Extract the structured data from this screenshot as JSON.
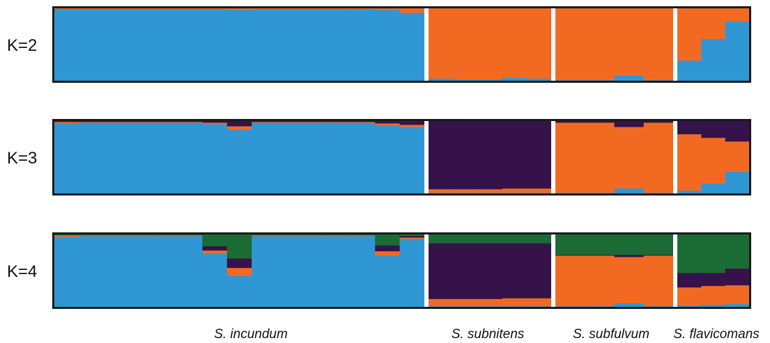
{
  "colors": {
    "blue": "#2f97d4",
    "orange": "#f26a22",
    "purple": "#35134a",
    "green": "#1b6b34",
    "frame": "#1a1a1a",
    "separator": "#ffffff"
  },
  "chart_data": {
    "type": "bar",
    "stacked": true,
    "description_free": true,
    "populations": [
      {
        "name": "S. incundum",
        "label": "S. incundum",
        "n": 15
      },
      {
        "name": "S. subnitens",
        "label": "S. subnitens",
        "n": 5
      },
      {
        "name": "S. subfulvum",
        "label": "S. subfulvum",
        "n": 4
      },
      {
        "name": "S. flavicomans",
        "label": "S. flavicomans",
        "n": 3
      }
    ],
    "panels": [
      {
        "label": "K=2",
        "clusters": [
          "blue",
          "orange"
        ],
        "individuals": [
          [
            0.99,
            0.01
          ],
          [
            0.99,
            0.01
          ],
          [
            0.99,
            0.01
          ],
          [
            0.99,
            0.01
          ],
          [
            0.99,
            0.01
          ],
          [
            0.99,
            0.01
          ],
          [
            0.99,
            0.01
          ],
          [
            0.98,
            0.02
          ],
          [
            0.99,
            0.01
          ],
          [
            0.99,
            0.01
          ],
          [
            0.99,
            0.01
          ],
          [
            0.99,
            0.01
          ],
          [
            0.99,
            0.01
          ],
          [
            0.98,
            0.02
          ],
          [
            0.94,
            0.06
          ],
          [
            0.03,
            0.97
          ],
          [
            0.02,
            0.98
          ],
          [
            0.02,
            0.98
          ],
          [
            0.04,
            0.96
          ],
          [
            0.03,
            0.97
          ],
          [
            0.01,
            0.99
          ],
          [
            0.01,
            0.99
          ],
          [
            0.07,
            0.93
          ],
          [
            0.01,
            0.99
          ],
          [
            0.28,
            0.72
          ],
          [
            0.58,
            0.42
          ],
          [
            0.82,
            0.18
          ]
        ]
      },
      {
        "label": "K=3",
        "clusters": [
          "blue",
          "orange",
          "purple"
        ],
        "individuals": [
          [
            0.97,
            0.02,
            0.01
          ],
          [
            0.98,
            0.01,
            0.01
          ],
          [
            0.98,
            0.01,
            0.01
          ],
          [
            0.98,
            0.01,
            0.01
          ],
          [
            0.98,
            0.01,
            0.01
          ],
          [
            0.98,
            0.01,
            0.01
          ],
          [
            0.96,
            0.02,
            0.02
          ],
          [
            0.88,
            0.05,
            0.07
          ],
          [
            0.98,
            0.01,
            0.01
          ],
          [
            0.98,
            0.01,
            0.01
          ],
          [
            0.98,
            0.01,
            0.01
          ],
          [
            0.98,
            0.01,
            0.01
          ],
          [
            0.98,
            0.01,
            0.01
          ],
          [
            0.94,
            0.03,
            0.03
          ],
          [
            0.92,
            0.03,
            0.05
          ],
          [
            0.01,
            0.05,
            0.94
          ],
          [
            0.01,
            0.05,
            0.94
          ],
          [
            0.01,
            0.05,
            0.94
          ],
          [
            0.01,
            0.06,
            0.93
          ],
          [
            0.01,
            0.06,
            0.93
          ],
          [
            0.01,
            0.97,
            0.02
          ],
          [
            0.01,
            0.97,
            0.02
          ],
          [
            0.07,
            0.85,
            0.08
          ],
          [
            0.01,
            0.97,
            0.02
          ],
          [
            0.04,
            0.78,
            0.18
          ],
          [
            0.14,
            0.63,
            0.23
          ],
          [
            0.3,
            0.42,
            0.28
          ]
        ]
      },
      {
        "label": "K=4",
        "clusters": [
          "blue",
          "orange",
          "purple",
          "green"
        ],
        "individuals": [
          [
            0.97,
            0.02,
            0.0,
            0.01
          ],
          [
            0.98,
            0.01,
            0.0,
            0.01
          ],
          [
            0.98,
            0.01,
            0.0,
            0.01
          ],
          [
            0.98,
            0.01,
            0.0,
            0.01
          ],
          [
            0.98,
            0.01,
            0.0,
            0.01
          ],
          [
            0.98,
            0.01,
            0.0,
            0.01
          ],
          [
            0.74,
            0.04,
            0.06,
            0.16
          ],
          [
            0.43,
            0.11,
            0.13,
            0.33
          ],
          [
            0.98,
            0.01,
            0.0,
            0.01
          ],
          [
            0.98,
            0.01,
            0.0,
            0.01
          ],
          [
            0.98,
            0.01,
            0.0,
            0.01
          ],
          [
            0.98,
            0.01,
            0.0,
            0.01
          ],
          [
            0.98,
            0.01,
            0.0,
            0.01
          ],
          [
            0.71,
            0.06,
            0.08,
            0.15
          ],
          [
            0.94,
            0.02,
            0.02,
            0.02
          ],
          [
            0.01,
            0.1,
            0.77,
            0.12
          ],
          [
            0.01,
            0.1,
            0.77,
            0.12
          ],
          [
            0.01,
            0.1,
            0.77,
            0.12
          ],
          [
            0.01,
            0.11,
            0.76,
            0.12
          ],
          [
            0.01,
            0.11,
            0.76,
            0.12
          ],
          [
            0.01,
            0.7,
            0.01,
            0.28
          ],
          [
            0.01,
            0.7,
            0.01,
            0.28
          ],
          [
            0.05,
            0.64,
            0.03,
            0.28
          ],
          [
            0.01,
            0.7,
            0.01,
            0.28
          ],
          [
            0.02,
            0.25,
            0.2,
            0.53
          ],
          [
            0.03,
            0.26,
            0.18,
            0.53
          ],
          [
            0.04,
            0.26,
            0.23,
            0.47
          ]
        ]
      }
    ]
  }
}
